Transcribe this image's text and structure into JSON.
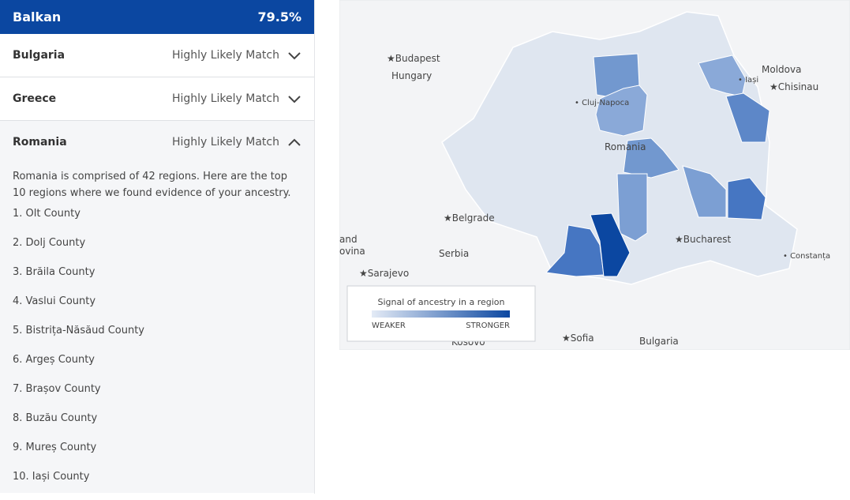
{
  "header": {
    "title": "Balkan",
    "percent": "79.5%"
  },
  "items": [
    {
      "country": "Bulgaria",
      "status": "Highly Likely Match"
    },
    {
      "country": "Greece",
      "status": "Highly Likely Match"
    },
    {
      "country": "Romania",
      "status": "Highly Likely Match"
    }
  ],
  "description": "Romania is comprised of 42 regions. Here are the top 10 regions where we found evidence of your ancestry.",
  "regions": [
    "1. Olt County",
    "2. Dolj County",
    "3. Brăila County",
    "4. Vaslui County",
    "5. Bistrița-Năsăud County",
    "6. Argeș County",
    "7. Brașov County",
    "8. Buzău County",
    "9. Mureș County",
    "10. Iași County"
  ],
  "map": {
    "labels": [
      {
        "text": "★Budapest"
      },
      {
        "text": "Hungary"
      },
      {
        "text": "Moldova"
      },
      {
        "text": "★Chisinau"
      },
      {
        "text": "• Cluj-Napoca"
      },
      {
        "text": "• Iași"
      },
      {
        "text": "Romania"
      },
      {
        "text": "★Belgrade"
      },
      {
        "text": "Serbia"
      },
      {
        "text": "★Bucharest"
      },
      {
        "text": "• Constanța"
      },
      {
        "text": "★Sarajevo"
      },
      {
        "text": "★Sofia"
      },
      {
        "text": "Bulgaria"
      },
      {
        "text": "Kosovo"
      },
      {
        "text": "and"
      },
      {
        "text": "ovina"
      }
    ],
    "legend": {
      "title": "Signal of ancestry in a region",
      "low": "WEAKER",
      "high": "STRONGER"
    }
  }
}
